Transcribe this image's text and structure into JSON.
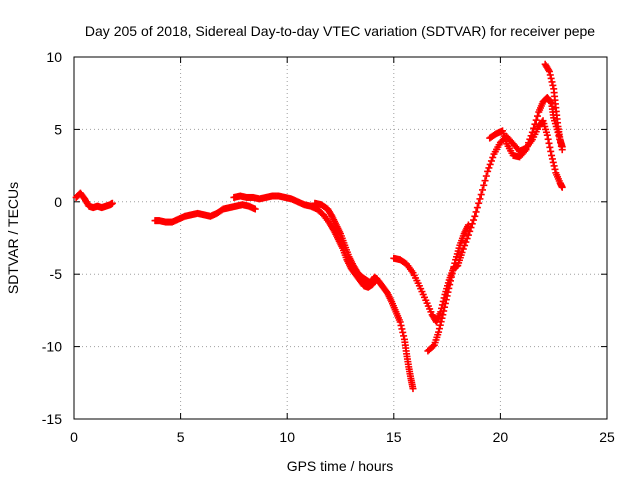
{
  "chart_data": {
    "type": "scatter",
    "title": "Day 205 of 2018, Sidereal Day-to-day VTEC variation (SDTVAR) for receiver pepe",
    "xlabel": "GPS time / hours",
    "ylabel": "SDTVAR / TECUs",
    "xlim": [
      0,
      25
    ],
    "ylim": [
      -15,
      10
    ],
    "x_ticks": [
      0,
      5,
      10,
      15,
      20,
      25
    ],
    "y_ticks": [
      -15,
      -10,
      -5,
      0,
      5,
      10
    ],
    "x_tick_labels": [
      "0",
      "5",
      "10",
      "15",
      "20",
      "25"
    ],
    "y_tick_labels": [
      "-15",
      "-10",
      "-5",
      "0",
      "5",
      "10"
    ],
    "grid": true,
    "marker": "plus",
    "color": "#ff0000",
    "series": [
      {
        "points": [
          [
            0.1,
            0.3
          ],
          [
            0.3,
            0.6
          ],
          [
            0.5,
            0.2
          ],
          [
            0.7,
            -0.3
          ],
          [
            0.9,
            -0.4
          ],
          [
            1.1,
            -0.3
          ],
          [
            1.3,
            -0.4
          ],
          [
            1.5,
            -0.3
          ],
          [
            1.7,
            -0.2
          ],
          [
            1.8,
            -0.1
          ]
        ]
      },
      {
        "points": [
          [
            3.8,
            -1.3
          ],
          [
            4.0,
            -1.3
          ],
          [
            4.3,
            -1.4
          ],
          [
            4.6,
            -1.4
          ],
          [
            4.9,
            -1.2
          ],
          [
            5.2,
            -1.0
          ],
          [
            5.5,
            -0.9
          ],
          [
            5.8,
            -0.8
          ],
          [
            6.1,
            -0.9
          ],
          [
            6.4,
            -1.0
          ],
          [
            6.7,
            -0.8
          ],
          [
            7.0,
            -0.5
          ],
          [
            7.3,
            -0.4
          ],
          [
            7.6,
            -0.3
          ],
          [
            7.9,
            -0.2
          ],
          [
            8.2,
            -0.3
          ],
          [
            8.5,
            -0.5
          ]
        ]
      },
      {
        "points": [
          [
            7.5,
            0.3
          ],
          [
            7.8,
            0.4
          ],
          [
            8.1,
            0.3
          ],
          [
            8.4,
            0.3
          ],
          [
            8.7,
            0.2
          ],
          [
            9.0,
            0.3
          ],
          [
            9.3,
            0.4
          ],
          [
            9.6,
            0.4
          ],
          [
            9.9,
            0.3
          ],
          [
            10.2,
            0.2
          ],
          [
            10.5,
            0.0
          ],
          [
            10.8,
            -0.2
          ],
          [
            11.1,
            -0.3
          ],
          [
            11.4,
            -0.5
          ],
          [
            11.7,
            -0.9
          ],
          [
            12.0,
            -1.5
          ],
          [
            12.2,
            -2.0
          ],
          [
            12.4,
            -2.6
          ],
          [
            12.6,
            -3.2
          ],
          [
            12.8,
            -4.0
          ],
          [
            13.0,
            -4.6
          ],
          [
            13.2,
            -5.0
          ],
          [
            13.4,
            -5.4
          ],
          [
            13.6,
            -5.8
          ],
          [
            13.8,
            -5.9
          ],
          [
            14.0,
            -5.7
          ],
          [
            14.2,
            -5.3
          ]
        ]
      },
      {
        "points": [
          [
            11.3,
            -0.1
          ],
          [
            11.6,
            -0.2
          ],
          [
            11.9,
            -0.5
          ],
          [
            12.1,
            -1.0
          ],
          [
            12.3,
            -1.6
          ],
          [
            12.5,
            -2.2
          ],
          [
            12.7,
            -3.0
          ],
          [
            12.9,
            -3.8
          ],
          [
            13.1,
            -4.4
          ],
          [
            13.3,
            -4.9
          ],
          [
            13.5,
            -5.2
          ],
          [
            13.7,
            -5.4
          ],
          [
            13.9,
            -5.6
          ],
          [
            14.1,
            -5.2
          ],
          [
            14.3,
            -5.5
          ],
          [
            14.5,
            -5.9
          ],
          [
            14.7,
            -6.3
          ],
          [
            14.9,
            -6.9
          ],
          [
            15.1,
            -7.6
          ],
          [
            15.3,
            -8.3
          ],
          [
            15.5,
            -9.5
          ],
          [
            15.6,
            -10.5
          ],
          [
            15.7,
            -11.4
          ],
          [
            15.8,
            -12.2
          ],
          [
            15.9,
            -12.9
          ]
        ]
      },
      {
        "points": [
          [
            15.0,
            -3.9
          ],
          [
            15.3,
            -4.0
          ],
          [
            15.6,
            -4.3
          ],
          [
            15.9,
            -4.9
          ],
          [
            16.2,
            -5.8
          ],
          [
            16.5,
            -6.8
          ],
          [
            16.8,
            -7.8
          ],
          [
            17.0,
            -8.3
          ],
          [
            17.2,
            -7.6
          ],
          [
            17.4,
            -6.4
          ],
          [
            17.6,
            -5.4
          ],
          [
            17.8,
            -4.6
          ],
          [
            18.0,
            -4.4
          ],
          [
            18.2,
            -3.5
          ],
          [
            18.5,
            -2.3
          ],
          [
            18.8,
            -1.0
          ],
          [
            19.1,
            0.5
          ],
          [
            19.4,
            2.1
          ],
          [
            19.7,
            3.3
          ],
          [
            20.0,
            4.1
          ],
          [
            20.3,
            4.5
          ],
          [
            20.6,
            4.0
          ],
          [
            20.9,
            3.5
          ],
          [
            21.2,
            3.7
          ],
          [
            21.5,
            4.3
          ],
          [
            21.8,
            5.2
          ],
          [
            22.0,
            5.6
          ],
          [
            22.2,
            4.6
          ],
          [
            22.4,
            3.2
          ],
          [
            22.6,
            2.0
          ],
          [
            22.8,
            1.3
          ],
          [
            22.9,
            1.0
          ]
        ]
      },
      {
        "points": [
          [
            16.6,
            -10.3
          ],
          [
            16.9,
            -9.9
          ],
          [
            17.1,
            -9.0
          ],
          [
            17.3,
            -7.8
          ],
          [
            17.5,
            -6.5
          ],
          [
            17.7,
            -5.2
          ],
          [
            17.9,
            -4.0
          ],
          [
            18.1,
            -3.0
          ],
          [
            18.3,
            -2.2
          ],
          [
            18.5,
            -1.6
          ]
        ]
      },
      {
        "points": [
          [
            19.5,
            4.4
          ],
          [
            19.8,
            4.7
          ],
          [
            20.1,
            4.9
          ],
          [
            20.3,
            4.0
          ],
          [
            20.6,
            3.2
          ],
          [
            20.9,
            3.1
          ],
          [
            21.2,
            3.6
          ],
          [
            21.5,
            4.8
          ],
          [
            21.8,
            6.2
          ],
          [
            22.0,
            6.9
          ],
          [
            22.2,
            7.2
          ],
          [
            22.4,
            6.8
          ],
          [
            22.5,
            5.8
          ],
          [
            22.7,
            4.8
          ],
          [
            22.9,
            3.6
          ]
        ]
      },
      {
        "points": [
          [
            22.1,
            9.5
          ],
          [
            22.3,
            9.0
          ],
          [
            22.5,
            7.8
          ],
          [
            22.6,
            6.5
          ],
          [
            22.7,
            5.2
          ],
          [
            22.8,
            4.3
          ],
          [
            22.9,
            3.8
          ]
        ]
      }
    ]
  }
}
